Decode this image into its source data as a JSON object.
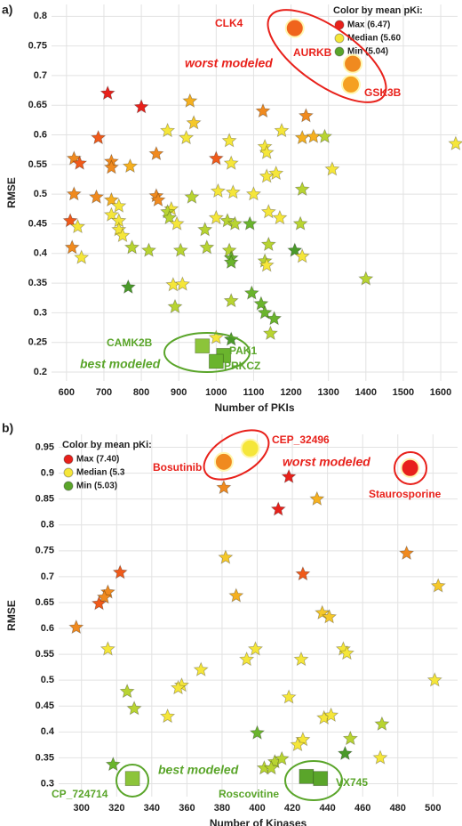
{
  "chart_data": [
    {
      "type": "scatter",
      "panel_label": "a)",
      "x_label": "Number of PKIs",
      "y_label": "RMSE",
      "xlim": [
        560,
        1645
      ],
      "ylim": [
        0.185,
        0.82
      ],
      "xticks": [
        600,
        700,
        800,
        900,
        1000,
        1100,
        1200,
        1300,
        1400,
        1500,
        1600
      ],
      "yticks": [
        0.2,
        0.25,
        0.3,
        0.35,
        0.4,
        0.45,
        0.5,
        0.55,
        0.6,
        0.65,
        0.7,
        0.75,
        0.8
      ],
      "grid": true,
      "legend_title": "Color by mean pKi:",
      "legend": [
        {
          "label": "Max (6.47)",
          "color": "#e8211b"
        },
        {
          "label": "Median (5.60",
          "color": "#f5e63a"
        },
        {
          "label": "Min (5.04)",
          "color": "#5aa52a"
        }
      ],
      "annotations": [
        "worst modeled",
        "best modeled"
      ],
      "points": [
        {
          "x": 710,
          "y": 0.67,
          "color": "#e8211b",
          "shape": "star"
        },
        {
          "x": 800,
          "y": 0.647,
          "color": "#e8211b",
          "shape": "star"
        },
        {
          "x": 930,
          "y": 0.657,
          "color": "#f5b020",
          "shape": "star"
        },
        {
          "x": 1125,
          "y": 0.64,
          "color": "#f08a1f",
          "shape": "star"
        },
        {
          "x": 1240,
          "y": 0.632,
          "color": "#f08a1f",
          "shape": "star"
        },
        {
          "x": 685,
          "y": 0.595,
          "color": "#f05a1a",
          "shape": "star"
        },
        {
          "x": 870,
          "y": 0.607,
          "color": "#f5e63a",
          "shape": "star"
        },
        {
          "x": 940,
          "y": 0.62,
          "color": "#f5c82a",
          "shape": "star"
        },
        {
          "x": 920,
          "y": 0.595,
          "color": "#f5e63a",
          "shape": "star"
        },
        {
          "x": 1000,
          "y": 0.56,
          "color": "#f05a1a",
          "shape": "star"
        },
        {
          "x": 1035,
          "y": 0.59,
          "color": "#f5e63a",
          "shape": "star"
        },
        {
          "x": 1130,
          "y": 0.58,
          "color": "#f5e63a",
          "shape": "star"
        },
        {
          "x": 1135,
          "y": 0.57,
          "color": "#f5e63a",
          "shape": "star"
        },
        {
          "x": 1175,
          "y": 0.607,
          "color": "#f5e63a",
          "shape": "star"
        },
        {
          "x": 1230,
          "y": 0.595,
          "color": "#f5b020",
          "shape": "star"
        },
        {
          "x": 1260,
          "y": 0.597,
          "color": "#f5b020",
          "shape": "star"
        },
        {
          "x": 1290,
          "y": 0.597,
          "color": "#b8d432",
          "shape": "star"
        },
        {
          "x": 1640,
          "y": 0.585,
          "color": "#f5e63a",
          "shape": "star"
        },
        {
          "x": 1310,
          "y": 0.542,
          "color": "#f5e63a",
          "shape": "star"
        },
        {
          "x": 620,
          "y": 0.56,
          "color": "#f08a1f",
          "shape": "star"
        },
        {
          "x": 635,
          "y": 0.552,
          "color": "#f05a1a",
          "shape": "star"
        },
        {
          "x": 720,
          "y": 0.555,
          "color": "#f08a1f",
          "shape": "star"
        },
        {
          "x": 720,
          "y": 0.545,
          "color": "#f08a1f",
          "shape": "star"
        },
        {
          "x": 770,
          "y": 0.547,
          "color": "#f5b020",
          "shape": "star"
        },
        {
          "x": 840,
          "y": 0.568,
          "color": "#f08a1f",
          "shape": "star"
        },
        {
          "x": 1040,
          "y": 0.552,
          "color": "#f5e63a",
          "shape": "star"
        },
        {
          "x": 1135,
          "y": 0.53,
          "color": "#f5e63a",
          "shape": "star"
        },
        {
          "x": 1160,
          "y": 0.535,
          "color": "#f5e63a",
          "shape": "star"
        },
        {
          "x": 1230,
          "y": 0.508,
          "color": "#b8d432",
          "shape": "star"
        },
        {
          "x": 620,
          "y": 0.5,
          "color": "#f08a1f",
          "shape": "star"
        },
        {
          "x": 680,
          "y": 0.495,
          "color": "#f08a1f",
          "shape": "star"
        },
        {
          "x": 720,
          "y": 0.49,
          "color": "#f5b020",
          "shape": "star"
        },
        {
          "x": 740,
          "y": 0.48,
          "color": "#f5e63a",
          "shape": "star"
        },
        {
          "x": 840,
          "y": 0.497,
          "color": "#f08a1f",
          "shape": "star"
        },
        {
          "x": 845,
          "y": 0.49,
          "color": "#f08a1f",
          "shape": "star"
        },
        {
          "x": 880,
          "y": 0.475,
          "color": "#f5e63a",
          "shape": "star"
        },
        {
          "x": 935,
          "y": 0.495,
          "color": "#b8d432",
          "shape": "star"
        },
        {
          "x": 1005,
          "y": 0.505,
          "color": "#f5e63a",
          "shape": "star"
        },
        {
          "x": 1045,
          "y": 0.503,
          "color": "#f5e63a",
          "shape": "star"
        },
        {
          "x": 1100,
          "y": 0.5,
          "color": "#f5e63a",
          "shape": "star"
        },
        {
          "x": 1140,
          "y": 0.47,
          "color": "#f5e63a",
          "shape": "star"
        },
        {
          "x": 1030,
          "y": 0.455,
          "color": "#b8d432",
          "shape": "star"
        },
        {
          "x": 1050,
          "y": 0.45,
          "color": "#b8d432",
          "shape": "star"
        },
        {
          "x": 1090,
          "y": 0.45,
          "color": "#6ab42d",
          "shape": "star"
        },
        {
          "x": 1170,
          "y": 0.46,
          "color": "#f5e63a",
          "shape": "star"
        },
        {
          "x": 1225,
          "y": 0.45,
          "color": "#b8d432",
          "shape": "star"
        },
        {
          "x": 610,
          "y": 0.455,
          "color": "#f05a1a",
          "shape": "star"
        },
        {
          "x": 630,
          "y": 0.445,
          "color": "#f5e63a",
          "shape": "star"
        },
        {
          "x": 720,
          "y": 0.465,
          "color": "#f5e63a",
          "shape": "star"
        },
        {
          "x": 740,
          "y": 0.455,
          "color": "#f5e63a",
          "shape": "star"
        },
        {
          "x": 740,
          "y": 0.44,
          "color": "#f5e63a",
          "shape": "star"
        },
        {
          "x": 750,
          "y": 0.43,
          "color": "#f5e63a",
          "shape": "star"
        },
        {
          "x": 870,
          "y": 0.47,
          "color": "#b8d432",
          "shape": "star"
        },
        {
          "x": 875,
          "y": 0.46,
          "color": "#b8d432",
          "shape": "star"
        },
        {
          "x": 895,
          "y": 0.45,
          "color": "#f5e63a",
          "shape": "star"
        },
        {
          "x": 970,
          "y": 0.44,
          "color": "#b8d432",
          "shape": "star"
        },
        {
          "x": 1000,
          "y": 0.46,
          "color": "#f5e63a",
          "shape": "star"
        },
        {
          "x": 615,
          "y": 0.41,
          "color": "#f08a1f",
          "shape": "star"
        },
        {
          "x": 640,
          "y": 0.393,
          "color": "#f5e63a",
          "shape": "star"
        },
        {
          "x": 775,
          "y": 0.41,
          "color": "#b8d432",
          "shape": "star"
        },
        {
          "x": 820,
          "y": 0.405,
          "color": "#b8d432",
          "shape": "star"
        },
        {
          "x": 905,
          "y": 0.405,
          "color": "#b8d432",
          "shape": "star"
        },
        {
          "x": 975,
          "y": 0.41,
          "color": "#b8d432",
          "shape": "star"
        },
        {
          "x": 1035,
          "y": 0.405,
          "color": "#b8d432",
          "shape": "star"
        },
        {
          "x": 1040,
          "y": 0.392,
          "color": "#6ab42d",
          "shape": "star"
        },
        {
          "x": 1040,
          "y": 0.385,
          "color": "#6ab42d",
          "shape": "star"
        },
        {
          "x": 1140,
          "y": 0.415,
          "color": "#b8d432",
          "shape": "star"
        },
        {
          "x": 1130,
          "y": 0.387,
          "color": "#b8d432",
          "shape": "star"
        },
        {
          "x": 1135,
          "y": 0.38,
          "color": "#f5e63a",
          "shape": "star"
        },
        {
          "x": 1210,
          "y": 0.405,
          "color": "#4a9a2a",
          "shape": "star"
        },
        {
          "x": 1230,
          "y": 0.395,
          "color": "#f5e63a",
          "shape": "star"
        },
        {
          "x": 765,
          "y": 0.343,
          "color": "#4a9a2a",
          "shape": "star"
        },
        {
          "x": 885,
          "y": 0.347,
          "color": "#f5e63a",
          "shape": "star"
        },
        {
          "x": 910,
          "y": 0.348,
          "color": "#f5e63a",
          "shape": "star"
        },
        {
          "x": 1400,
          "y": 0.357,
          "color": "#b8d432",
          "shape": "star"
        },
        {
          "x": 890,
          "y": 0.31,
          "color": "#b8d432",
          "shape": "star"
        },
        {
          "x": 1040,
          "y": 0.32,
          "color": "#b8d432",
          "shape": "star"
        },
        {
          "x": 1095,
          "y": 0.333,
          "color": "#6ab42d",
          "shape": "star"
        },
        {
          "x": 1120,
          "y": 0.315,
          "color": "#6ab42d",
          "shape": "star"
        },
        {
          "x": 1130,
          "y": 0.3,
          "color": "#6ab42d",
          "shape": "star"
        },
        {
          "x": 1155,
          "y": 0.29,
          "color": "#6ab42d",
          "shape": "star"
        },
        {
          "x": 1145,
          "y": 0.265,
          "color": "#b8d432",
          "shape": "star"
        },
        {
          "x": 1000,
          "y": 0.258,
          "color": "#f5e63a",
          "shape": "star"
        },
        {
          "x": 1040,
          "y": 0.255,
          "color": "#4a9a2a",
          "shape": "star"
        },
        {
          "x": 1210,
          "y": 0.78,
          "color": "#f0641c",
          "shape": "circle",
          "label": "CLK4"
        },
        {
          "x": 1365,
          "y": 0.72,
          "color": "#f08a1f",
          "shape": "circle",
          "label": "AURKB"
        },
        {
          "x": 1360,
          "y": 0.685,
          "color": "#f5a020",
          "shape": "circle",
          "label": "GSK3B"
        },
        {
          "x": 963,
          "y": 0.244,
          "color": "#8cc43a",
          "shape": "square",
          "label": "CAMK2B"
        },
        {
          "x": 1020,
          "y": 0.228,
          "color": "#6ab42d",
          "shape": "square",
          "label": "PAK1"
        },
        {
          "x": 1000,
          "y": 0.218,
          "color": "#6ab42d",
          "shape": "square",
          "label": "PRKCZ"
        }
      ]
    },
    {
      "type": "scatter",
      "panel_label": "b)",
      "x_label": "Number of Kinases",
      "y_label": "RMSE",
      "xlim": [
        287,
        514
      ],
      "ylim": [
        0.275,
        0.975
      ],
      "xticks": [
        300,
        320,
        340,
        360,
        380,
        400,
        420,
        440,
        460,
        480,
        500
      ],
      "yticks": [
        0.3,
        0.35,
        0.4,
        0.45,
        0.5,
        0.55,
        0.6,
        0.65,
        0.7,
        0.75,
        0.8,
        0.85,
        0.9,
        0.95
      ],
      "grid": true,
      "legend_title": "Color by mean pKi:",
      "legend": [
        {
          "label": "Max (7.40)",
          "color": "#e8211b"
        },
        {
          "label": "Median (5.3",
          "color": "#f5e63a"
        },
        {
          "label": "Min (5.03)",
          "color": "#5aa52a"
        }
      ],
      "annotations": [
        "worst modeled",
        "best modeled"
      ],
      "points": [
        {
          "x": 381,
          "y": 0.872,
          "color": "#f08a1f",
          "shape": "star"
        },
        {
          "x": 418,
          "y": 0.893,
          "color": "#e8211b",
          "shape": "star"
        },
        {
          "x": 412,
          "y": 0.83,
          "color": "#e8211b",
          "shape": "star"
        },
        {
          "x": 434,
          "y": 0.85,
          "color": "#f5b020",
          "shape": "star"
        },
        {
          "x": 382,
          "y": 0.737,
          "color": "#f5c82a",
          "shape": "star"
        },
        {
          "x": 388,
          "y": 0.663,
          "color": "#f5b020",
          "shape": "star"
        },
        {
          "x": 322,
          "y": 0.708,
          "color": "#f05a1a",
          "shape": "star"
        },
        {
          "x": 315,
          "y": 0.67,
          "color": "#f08a1f",
          "shape": "star"
        },
        {
          "x": 313,
          "y": 0.66,
          "color": "#f08a1f",
          "shape": "star"
        },
        {
          "x": 310,
          "y": 0.648,
          "color": "#f05a1a",
          "shape": "star"
        },
        {
          "x": 297,
          "y": 0.602,
          "color": "#f08a1f",
          "shape": "star"
        },
        {
          "x": 426,
          "y": 0.705,
          "color": "#f05a1a",
          "shape": "star"
        },
        {
          "x": 485,
          "y": 0.745,
          "color": "#f08a1f",
          "shape": "star"
        },
        {
          "x": 503,
          "y": 0.682,
          "color": "#f5c82a",
          "shape": "star"
        },
        {
          "x": 437,
          "y": 0.63,
          "color": "#f5c82a",
          "shape": "star"
        },
        {
          "x": 441,
          "y": 0.622,
          "color": "#f5c82a",
          "shape": "star"
        },
        {
          "x": 315,
          "y": 0.56,
          "color": "#f5e63a",
          "shape": "star"
        },
        {
          "x": 368,
          "y": 0.52,
          "color": "#f5e63a",
          "shape": "star"
        },
        {
          "x": 357,
          "y": 0.49,
          "color": "#f5e63a",
          "shape": "star"
        },
        {
          "x": 355,
          "y": 0.485,
          "color": "#f5e63a",
          "shape": "star"
        },
        {
          "x": 399,
          "y": 0.56,
          "color": "#f5e63a",
          "shape": "star"
        },
        {
          "x": 394,
          "y": 0.54,
          "color": "#f5e63a",
          "shape": "star"
        },
        {
          "x": 425,
          "y": 0.54,
          "color": "#f5e63a",
          "shape": "star"
        },
        {
          "x": 449,
          "y": 0.56,
          "color": "#f5e63a",
          "shape": "star"
        },
        {
          "x": 451,
          "y": 0.552,
          "color": "#f5e63a",
          "shape": "star"
        },
        {
          "x": 501,
          "y": 0.5,
          "color": "#f5e63a",
          "shape": "star"
        },
        {
          "x": 418,
          "y": 0.467,
          "color": "#f5e63a",
          "shape": "star"
        },
        {
          "x": 326,
          "y": 0.478,
          "color": "#b8d432",
          "shape": "star"
        },
        {
          "x": 330,
          "y": 0.445,
          "color": "#b8d432",
          "shape": "star"
        },
        {
          "x": 349,
          "y": 0.43,
          "color": "#f5e63a",
          "shape": "star"
        },
        {
          "x": 400,
          "y": 0.398,
          "color": "#6ab42d",
          "shape": "star"
        },
        {
          "x": 438,
          "y": 0.427,
          "color": "#f5e63a",
          "shape": "star"
        },
        {
          "x": 442,
          "y": 0.432,
          "color": "#f5e63a",
          "shape": "star"
        },
        {
          "x": 453,
          "y": 0.387,
          "color": "#b8d432",
          "shape": "star"
        },
        {
          "x": 471,
          "y": 0.415,
          "color": "#b8d432",
          "shape": "star"
        },
        {
          "x": 426,
          "y": 0.385,
          "color": "#f5e63a",
          "shape": "star"
        },
        {
          "x": 423,
          "y": 0.375,
          "color": "#f5e63a",
          "shape": "star"
        },
        {
          "x": 450,
          "y": 0.358,
          "color": "#4a9a2a",
          "shape": "star"
        },
        {
          "x": 470,
          "y": 0.35,
          "color": "#f5e63a",
          "shape": "star"
        },
        {
          "x": 318,
          "y": 0.337,
          "color": "#6ab42d",
          "shape": "star"
        },
        {
          "x": 410,
          "y": 0.342,
          "color": "#b8d432",
          "shape": "star"
        },
        {
          "x": 414,
          "y": 0.348,
          "color": "#b8d432",
          "shape": "star"
        },
        {
          "x": 404,
          "y": 0.33,
          "color": "#b8d432",
          "shape": "star"
        },
        {
          "x": 408,
          "y": 0.33,
          "color": "#b8d432",
          "shape": "star"
        },
        {
          "x": 381,
          "y": 0.922,
          "color": "#f08a1f",
          "shape": "circle",
          "label": "Bosutinib"
        },
        {
          "x": 396,
          "y": 0.948,
          "color": "#f5e63a",
          "shape": "circle",
          "label": "CEP_32496"
        },
        {
          "x": 487,
          "y": 0.91,
          "color": "#e8211b",
          "shape": "circle",
          "label": "Staurosporine"
        },
        {
          "x": 329,
          "y": 0.31,
          "color": "#8cc43a",
          "shape": "square",
          "label": "CP_724714"
        },
        {
          "x": 428,
          "y": 0.314,
          "color": "#5aa52a",
          "shape": "square",
          "label": "Roscovitine"
        },
        {
          "x": 436,
          "y": 0.31,
          "color": "#5aa52a",
          "shape": "square",
          "label": "VX745"
        }
      ]
    }
  ]
}
